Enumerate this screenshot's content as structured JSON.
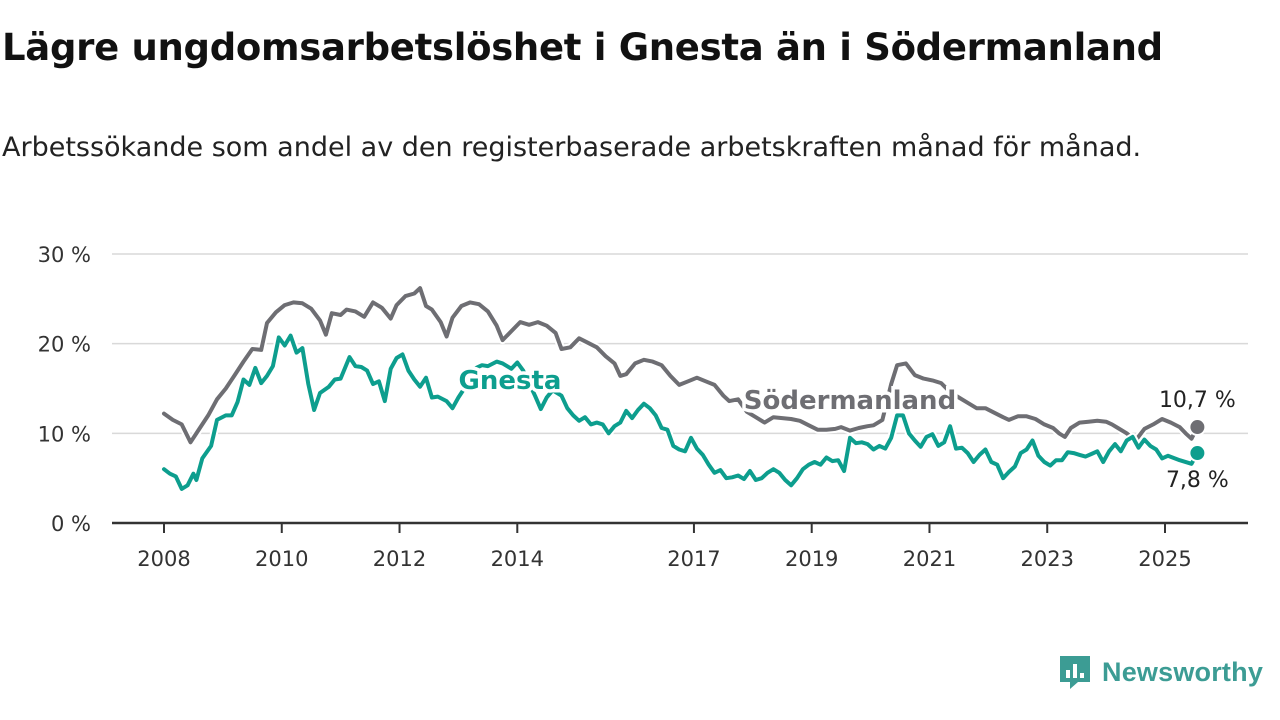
{
  "title": "Lägre ungdomsarbetslöshet i Gnesta än i Södermanland",
  "subtitle": "Arbetssökande som andel av den registerbaserade arbetskraften månad för månad.",
  "brand": {
    "name": "Newsworthy",
    "icon": "newsworthy-logo-icon",
    "color": "#3c9c94"
  },
  "chart_data": {
    "type": "line",
    "ylim": [
      0,
      30
    ],
    "y_ticks": [
      0,
      10,
      20,
      30
    ],
    "y_tick_labels": [
      "0 %",
      "10 %",
      "20 %",
      "30 %"
    ],
    "x_ticks": [
      2008,
      2010,
      2012,
      2014,
      2017,
      2019,
      2021,
      2023,
      2025
    ],
    "x_tick_labels": [
      "2008",
      "2010",
      "2012",
      "2014",
      "2017",
      "2019",
      "2021",
      "2023",
      "2025"
    ],
    "grid": true,
    "legend": "inline labels",
    "series": [
      {
        "name": "Södermanland",
        "color": "#6e6e73",
        "end_label": "10,7 %",
        "points": [
          [
            2008.0,
            12.2
          ],
          [
            2008.15,
            11.5
          ],
          [
            2008.3,
            11
          ],
          [
            2008.45,
            9
          ],
          [
            2008.6,
            10.5
          ],
          [
            2008.75,
            12
          ],
          [
            2008.9,
            13.8
          ],
          [
            2009.05,
            15
          ],
          [
            2009.2,
            16.5
          ],
          [
            2009.35,
            18
          ],
          [
            2009.5,
            19.4
          ],
          [
            2009.65,
            19.3
          ],
          [
            2009.75,
            22.3
          ],
          [
            2009.9,
            23.5
          ],
          [
            2010.05,
            24.3
          ],
          [
            2010.2,
            24.6
          ],
          [
            2010.35,
            24.5
          ],
          [
            2010.5,
            23.9
          ],
          [
            2010.65,
            22.6
          ],
          [
            2010.75,
            21
          ],
          [
            2010.85,
            23.4
          ],
          [
            2011.0,
            23.2
          ],
          [
            2011.1,
            23.8
          ],
          [
            2011.25,
            23.6
          ],
          [
            2011.4,
            23
          ],
          [
            2011.55,
            24.6
          ],
          [
            2011.7,
            24
          ],
          [
            2011.85,
            22.8
          ],
          [
            2011.95,
            24.3
          ],
          [
            2012.1,
            25.3
          ],
          [
            2012.25,
            25.6
          ],
          [
            2012.35,
            26.2
          ],
          [
            2012.45,
            24.2
          ],
          [
            2012.55,
            23.8
          ],
          [
            2012.7,
            22.4
          ],
          [
            2012.8,
            20.8
          ],
          [
            2012.9,
            22.9
          ],
          [
            2013.05,
            24.2
          ],
          [
            2013.2,
            24.6
          ],
          [
            2013.35,
            24.4
          ],
          [
            2013.5,
            23.6
          ],
          [
            2013.65,
            22
          ],
          [
            2013.75,
            20.4
          ],
          [
            2013.9,
            21.4
          ],
          [
            2014.05,
            22.4
          ],
          [
            2014.2,
            22.1
          ],
          [
            2014.35,
            22.4
          ],
          [
            2014.5,
            22
          ],
          [
            2014.65,
            21.2
          ],
          [
            2014.75,
            19.4
          ],
          [
            2014.9,
            19.6
          ],
          [
            2015.05,
            20.6
          ],
          [
            2015.2,
            20.1
          ],
          [
            2015.35,
            19.6
          ],
          [
            2015.5,
            18.6
          ],
          [
            2015.65,
            17.8
          ],
          [
            2015.75,
            16.4
          ],
          [
            2015.85,
            16.6
          ],
          [
            2016.0,
            17.8
          ],
          [
            2016.15,
            18.2
          ],
          [
            2016.3,
            18
          ],
          [
            2016.45,
            17.6
          ],
          [
            2016.6,
            16.4
          ],
          [
            2016.75,
            15.4
          ],
          [
            2016.9,
            15.8
          ],
          [
            2017.05,
            16.2
          ],
          [
            2017.2,
            15.8
          ],
          [
            2017.35,
            15.4
          ],
          [
            2017.5,
            14.2
          ],
          [
            2017.6,
            13.6
          ],
          [
            2017.75,
            13.8
          ],
          [
            2017.9,
            12.4
          ],
          [
            2018.05,
            11.8
          ],
          [
            2018.2,
            11.2
          ],
          [
            2018.35,
            11.8
          ],
          [
            2018.5,
            11.7
          ],
          [
            2018.65,
            11.6
          ],
          [
            2018.8,
            11.4
          ],
          [
            2018.95,
            10.9
          ],
          [
            2019.1,
            10.4
          ],
          [
            2019.25,
            10.4
          ],
          [
            2019.4,
            10.5
          ],
          [
            2019.5,
            10.7
          ],
          [
            2019.65,
            10.3
          ],
          [
            2019.8,
            10.6
          ],
          [
            2019.95,
            10.8
          ],
          [
            2020.05,
            10.9
          ],
          [
            2020.2,
            11.5
          ],
          [
            2020.35,
            15.5
          ],
          [
            2020.45,
            17.6
          ],
          [
            2020.6,
            17.8
          ],
          [
            2020.75,
            16.5
          ],
          [
            2020.9,
            16.1
          ],
          [
            2021.05,
            15.9
          ],
          [
            2021.2,
            15.6
          ],
          [
            2021.35,
            14.6
          ],
          [
            2021.5,
            14
          ],
          [
            2021.65,
            13.4
          ],
          [
            2021.8,
            12.8
          ],
          [
            2021.95,
            12.8
          ],
          [
            2022.1,
            12.3
          ],
          [
            2022.25,
            11.8
          ],
          [
            2022.35,
            11.5
          ],
          [
            2022.5,
            11.9
          ],
          [
            2022.65,
            11.9
          ],
          [
            2022.8,
            11.6
          ],
          [
            2022.95,
            11
          ],
          [
            2023.1,
            10.6
          ],
          [
            2023.2,
            10
          ],
          [
            2023.3,
            9.6
          ],
          [
            2023.4,
            10.6
          ],
          [
            2023.55,
            11.2
          ],
          [
            2023.7,
            11.3
          ],
          [
            2023.85,
            11.4
          ],
          [
            2024.0,
            11.3
          ],
          [
            2024.1,
            11
          ],
          [
            2024.2,
            10.6
          ],
          [
            2024.35,
            10
          ],
          [
            2024.5,
            9.2
          ],
          [
            2024.65,
            10.5
          ],
          [
            2024.8,
            11
          ],
          [
            2024.95,
            11.6
          ],
          [
            2025.1,
            11.2
          ],
          [
            2025.25,
            10.7
          ],
          [
            2025.35,
            10
          ],
          [
            2025.45,
            9.4
          ],
          [
            2025.55,
            10.7
          ]
        ]
      },
      {
        "name": "Gnesta",
        "color": "#0d9e8e",
        "end_label": "7,8 %",
        "points": [
          [
            2008.0,
            6
          ],
          [
            2008.1,
            5.5
          ],
          [
            2008.2,
            5.2
          ],
          [
            2008.3,
            3.8
          ],
          [
            2008.4,
            4.2
          ],
          [
            2008.5,
            5.5
          ],
          [
            2008.55,
            4.8
          ],
          [
            2008.65,
            7.2
          ],
          [
            2008.8,
            8.6
          ],
          [
            2008.9,
            11.5
          ],
          [
            2009.05,
            12
          ],
          [
            2009.15,
            12
          ],
          [
            2009.25,
            13.5
          ],
          [
            2009.35,
            16
          ],
          [
            2009.45,
            15.4
          ],
          [
            2009.55,
            17.3
          ],
          [
            2009.65,
            15.6
          ],
          [
            2009.75,
            16.4
          ],
          [
            2009.85,
            17.5
          ],
          [
            2009.95,
            20.7
          ],
          [
            2010.05,
            19.8
          ],
          [
            2010.15,
            20.9
          ],
          [
            2010.25,
            19
          ],
          [
            2010.35,
            19.5
          ],
          [
            2010.45,
            15.5
          ],
          [
            2010.55,
            12.6
          ],
          [
            2010.65,
            14.5
          ],
          [
            2010.8,
            15.2
          ],
          [
            2010.9,
            16
          ],
          [
            2011.0,
            16.1
          ],
          [
            2011.15,
            18.5
          ],
          [
            2011.25,
            17.5
          ],
          [
            2011.35,
            17.4
          ],
          [
            2011.45,
            17
          ],
          [
            2011.55,
            15.5
          ],
          [
            2011.65,
            15.8
          ],
          [
            2011.75,
            13.6
          ],
          [
            2011.85,
            17.2
          ],
          [
            2011.95,
            18.4
          ],
          [
            2012.05,
            18.8
          ],
          [
            2012.15,
            17
          ],
          [
            2012.25,
            16
          ],
          [
            2012.35,
            15.2
          ],
          [
            2012.45,
            16.2
          ],
          [
            2012.55,
            14
          ],
          [
            2012.65,
            14.1
          ],
          [
            2012.8,
            13.6
          ],
          [
            2012.9,
            12.8
          ],
          [
            2013.0,
            14
          ],
          [
            2013.1,
            15
          ],
          [
            2013.2,
            16
          ],
          [
            2013.3,
            17.3
          ],
          [
            2013.4,
            17.6
          ],
          [
            2013.5,
            17.5
          ],
          [
            2013.65,
            18
          ],
          [
            2013.75,
            17.8
          ],
          [
            2013.9,
            17.2
          ],
          [
            2014.0,
            17.9
          ],
          [
            2014.1,
            17
          ],
          [
            2014.2,
            15.6
          ],
          [
            2014.3,
            14.2
          ],
          [
            2014.4,
            12.7
          ],
          [
            2014.5,
            14
          ],
          [
            2014.6,
            14.8
          ],
          [
            2014.75,
            14.2
          ],
          [
            2014.85,
            12.8
          ],
          [
            2014.95,
            12
          ],
          [
            2015.05,
            11.4
          ],
          [
            2015.15,
            11.8
          ],
          [
            2015.25,
            11
          ],
          [
            2015.35,
            11.2
          ],
          [
            2015.45,
            11
          ],
          [
            2015.55,
            10
          ],
          [
            2015.65,
            10.8
          ],
          [
            2015.75,
            11.2
          ],
          [
            2015.85,
            12.5
          ],
          [
            2015.95,
            11.7
          ],
          [
            2016.05,
            12.6
          ],
          [
            2016.15,
            13.3
          ],
          [
            2016.25,
            12.8
          ],
          [
            2016.35,
            12
          ],
          [
            2016.45,
            10.6
          ],
          [
            2016.55,
            10.4
          ],
          [
            2016.65,
            8.6
          ],
          [
            2016.75,
            8.2
          ],
          [
            2016.85,
            8
          ],
          [
            2016.95,
            9.5
          ],
          [
            2017.05,
            8.3
          ],
          [
            2017.15,
            7.6
          ],
          [
            2017.25,
            6.5
          ],
          [
            2017.35,
            5.6
          ],
          [
            2017.45,
            5.9
          ],
          [
            2017.55,
            5
          ],
          [
            2017.65,
            5.1
          ],
          [
            2017.75,
            5.3
          ],
          [
            2017.85,
            4.9
          ],
          [
            2017.95,
            5.8
          ],
          [
            2018.05,
            4.8
          ],
          [
            2018.15,
            5
          ],
          [
            2018.25,
            5.6
          ],
          [
            2018.35,
            6
          ],
          [
            2018.45,
            5.6
          ],
          [
            2018.55,
            4.8
          ],
          [
            2018.65,
            4.2
          ],
          [
            2018.75,
            5
          ],
          [
            2018.85,
            6
          ],
          [
            2018.95,
            6.5
          ],
          [
            2019.05,
            6.8
          ],
          [
            2019.15,
            6.5
          ],
          [
            2019.25,
            7.3
          ],
          [
            2019.35,
            6.9
          ],
          [
            2019.45,
            7
          ],
          [
            2019.55,
            5.8
          ],
          [
            2019.65,
            9.5
          ],
          [
            2019.75,
            8.9
          ],
          [
            2019.85,
            9
          ],
          [
            2019.95,
            8.8
          ],
          [
            2020.05,
            8.2
          ],
          [
            2020.15,
            8.6
          ],
          [
            2020.25,
            8.3
          ],
          [
            2020.35,
            9.5
          ],
          [
            2020.45,
            12
          ],
          [
            2020.55,
            12
          ],
          [
            2020.65,
            10
          ],
          [
            2020.75,
            9.2
          ],
          [
            2020.85,
            8.5
          ],
          [
            2020.95,
            9.6
          ],
          [
            2021.05,
            9.9
          ],
          [
            2021.15,
            8.6
          ],
          [
            2021.25,
            9
          ],
          [
            2021.35,
            10.8
          ],
          [
            2021.45,
            8.3
          ],
          [
            2021.55,
            8.4
          ],
          [
            2021.65,
            7.8
          ],
          [
            2021.75,
            6.8
          ],
          [
            2021.85,
            7.6
          ],
          [
            2021.95,
            8.2
          ],
          [
            2022.05,
            6.8
          ],
          [
            2022.15,
            6.5
          ],
          [
            2022.25,
            5
          ],
          [
            2022.35,
            5.7
          ],
          [
            2022.45,
            6.3
          ],
          [
            2022.55,
            7.8
          ],
          [
            2022.65,
            8.2
          ],
          [
            2022.75,
            9.2
          ],
          [
            2022.85,
            7.5
          ],
          [
            2022.95,
            6.8
          ],
          [
            2023.05,
            6.4
          ],
          [
            2023.15,
            7
          ],
          [
            2023.25,
            7
          ],
          [
            2023.35,
            7.9
          ],
          [
            2023.45,
            7.8
          ],
          [
            2023.55,
            7.6
          ],
          [
            2023.65,
            7.4
          ],
          [
            2023.75,
            7.7
          ],
          [
            2023.85,
            8
          ],
          [
            2023.95,
            6.8
          ],
          [
            2024.05,
            8
          ],
          [
            2024.15,
            8.8
          ],
          [
            2024.25,
            8
          ],
          [
            2024.35,
            9.2
          ],
          [
            2024.45,
            9.6
          ],
          [
            2024.55,
            8.4
          ],
          [
            2024.65,
            9.3
          ],
          [
            2024.75,
            8.6
          ],
          [
            2024.85,
            8.2
          ],
          [
            2024.95,
            7.2
          ],
          [
            2025.05,
            7.5
          ],
          [
            2025.25,
            7
          ],
          [
            2025.45,
            6.6
          ],
          [
            2025.55,
            7.8
          ]
        ]
      }
    ]
  }
}
